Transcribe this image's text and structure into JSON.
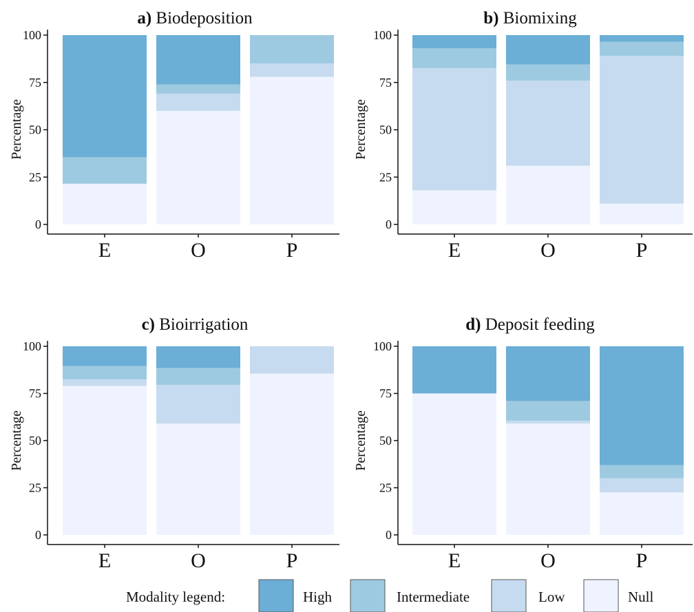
{
  "chart_data": [
    {
      "type": "stacked-bar",
      "panel_letter": "a)",
      "title": "Biodeposition",
      "ylabel": "Percentage",
      "xlabel": "",
      "ylim": [
        0,
        100
      ],
      "yticks": [
        0,
        25,
        50,
        75,
        100
      ],
      "categories": [
        "E",
        "O",
        "P"
      ],
      "series": [
        {
          "name": "Null",
          "values": [
            21.5,
            60.0,
            78.0
          ]
        },
        {
          "name": "Low",
          "values": [
            0,
            9.0,
            7.0
          ]
        },
        {
          "name": "Intermediate",
          "values": [
            14.0,
            5.0,
            15.0
          ]
        },
        {
          "name": "High",
          "values": [
            64.5,
            26.0,
            0
          ]
        }
      ]
    },
    {
      "type": "stacked-bar",
      "panel_letter": "b)",
      "title": "Biomixing",
      "ylabel": "Percentage",
      "xlabel": "",
      "ylim": [
        0,
        100
      ],
      "yticks": [
        0,
        25,
        50,
        75,
        100
      ],
      "categories": [
        "E",
        "O",
        "P"
      ],
      "series": [
        {
          "name": "Null",
          "values": [
            18.0,
            31.0,
            11.0
          ]
        },
        {
          "name": "Low",
          "values": [
            64.5,
            45.0,
            78.0
          ]
        },
        {
          "name": "Intermediate",
          "values": [
            10.5,
            8.5,
            7.5
          ]
        },
        {
          "name": "High",
          "values": [
            7.0,
            15.5,
            3.5
          ]
        }
      ]
    },
    {
      "type": "stacked-bar",
      "panel_letter": "c)",
      "title": "Bioirrigation",
      "ylabel": "Percentage",
      "xlabel": "",
      "ylim": [
        0,
        100
      ],
      "yticks": [
        0,
        25,
        50,
        75,
        100
      ],
      "categories": [
        "E",
        "O",
        "P"
      ],
      "series": [
        {
          "name": "Null",
          "values": [
            79.0,
            59.0,
            85.5
          ]
        },
        {
          "name": "Low",
          "values": [
            3.5,
            20.5,
            14.5
          ]
        },
        {
          "name": "Intermediate",
          "values": [
            7.0,
            9.0,
            0
          ]
        },
        {
          "name": "High",
          "values": [
            10.5,
            11.5,
            0
          ]
        }
      ]
    },
    {
      "type": "stacked-bar",
      "panel_letter": "d)",
      "title": "Deposit feeding",
      "ylabel": "Percentage",
      "xlabel": "",
      "ylim": [
        0,
        100
      ],
      "yticks": [
        0,
        25,
        50,
        75,
        100
      ],
      "categories": [
        "E",
        "O",
        "P"
      ],
      "series": [
        {
          "name": "Null",
          "values": [
            75.0,
            59.0,
            22.5
          ]
        },
        {
          "name": "Low",
          "values": [
            0,
            1.5,
            7.5
          ]
        },
        {
          "name": "Intermediate",
          "values": [
            0,
            10.5,
            7.0
          ]
        },
        {
          "name": "High",
          "values": [
            25.0,
            29.0,
            63.0
          ]
        }
      ]
    }
  ],
  "legend": {
    "title": "Modality legend:",
    "placement": "bottom",
    "items": [
      {
        "label": "High",
        "color": "#6baed6"
      },
      {
        "label": "Intermediate",
        "color": "#9ecae1"
      },
      {
        "label": "Low",
        "color": "#c6dbef"
      },
      {
        "label": "Null",
        "color": "#eff3ff"
      }
    ]
  },
  "colors": {
    "High": "#6baed6",
    "Intermediate": "#9ecae1",
    "Low": "#c6dbef",
    "Null": "#eff3ff"
  }
}
